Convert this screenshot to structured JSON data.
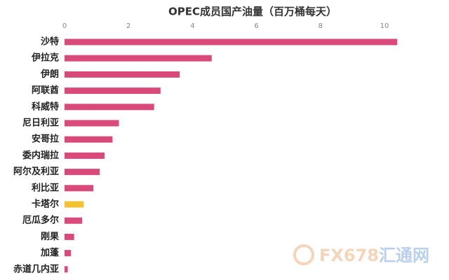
{
  "chart_data": {
    "type": "bar",
    "orientation": "horizontal",
    "title": "OPEC成员国产油量（百万桶每天）",
    "categories": [
      "沙特",
      "伊拉克",
      "伊朗",
      "阿联酋",
      "科威特",
      "尼日利亚",
      "安哥拉",
      "委内瑞拉",
      "阿尔及利亚",
      "利比亚",
      "卡塔尔",
      "厄瓜多尔",
      "刚果",
      "加蓬",
      "赤道几内亚"
    ],
    "values": [
      10.4,
      4.6,
      3.6,
      3.0,
      2.8,
      1.7,
      1.5,
      1.25,
      1.1,
      0.9,
      0.6,
      0.55,
      0.3,
      0.2,
      0.1
    ],
    "colors": [
      "#d94a7b",
      "#d94a7b",
      "#d94a7b",
      "#d94a7b",
      "#d94a7b",
      "#d94a7b",
      "#d94a7b",
      "#d94a7b",
      "#d94a7b",
      "#d94a7b",
      "#f2c230",
      "#d94a7b",
      "#d94a7b",
      "#d94a7b",
      "#d94a7b"
    ],
    "xlim": [
      0,
      11
    ],
    "xticks": [
      0,
      2,
      4,
      6,
      8,
      10
    ],
    "grid": false,
    "watermark": [
      "FX678",
      "汇通网"
    ]
  }
}
